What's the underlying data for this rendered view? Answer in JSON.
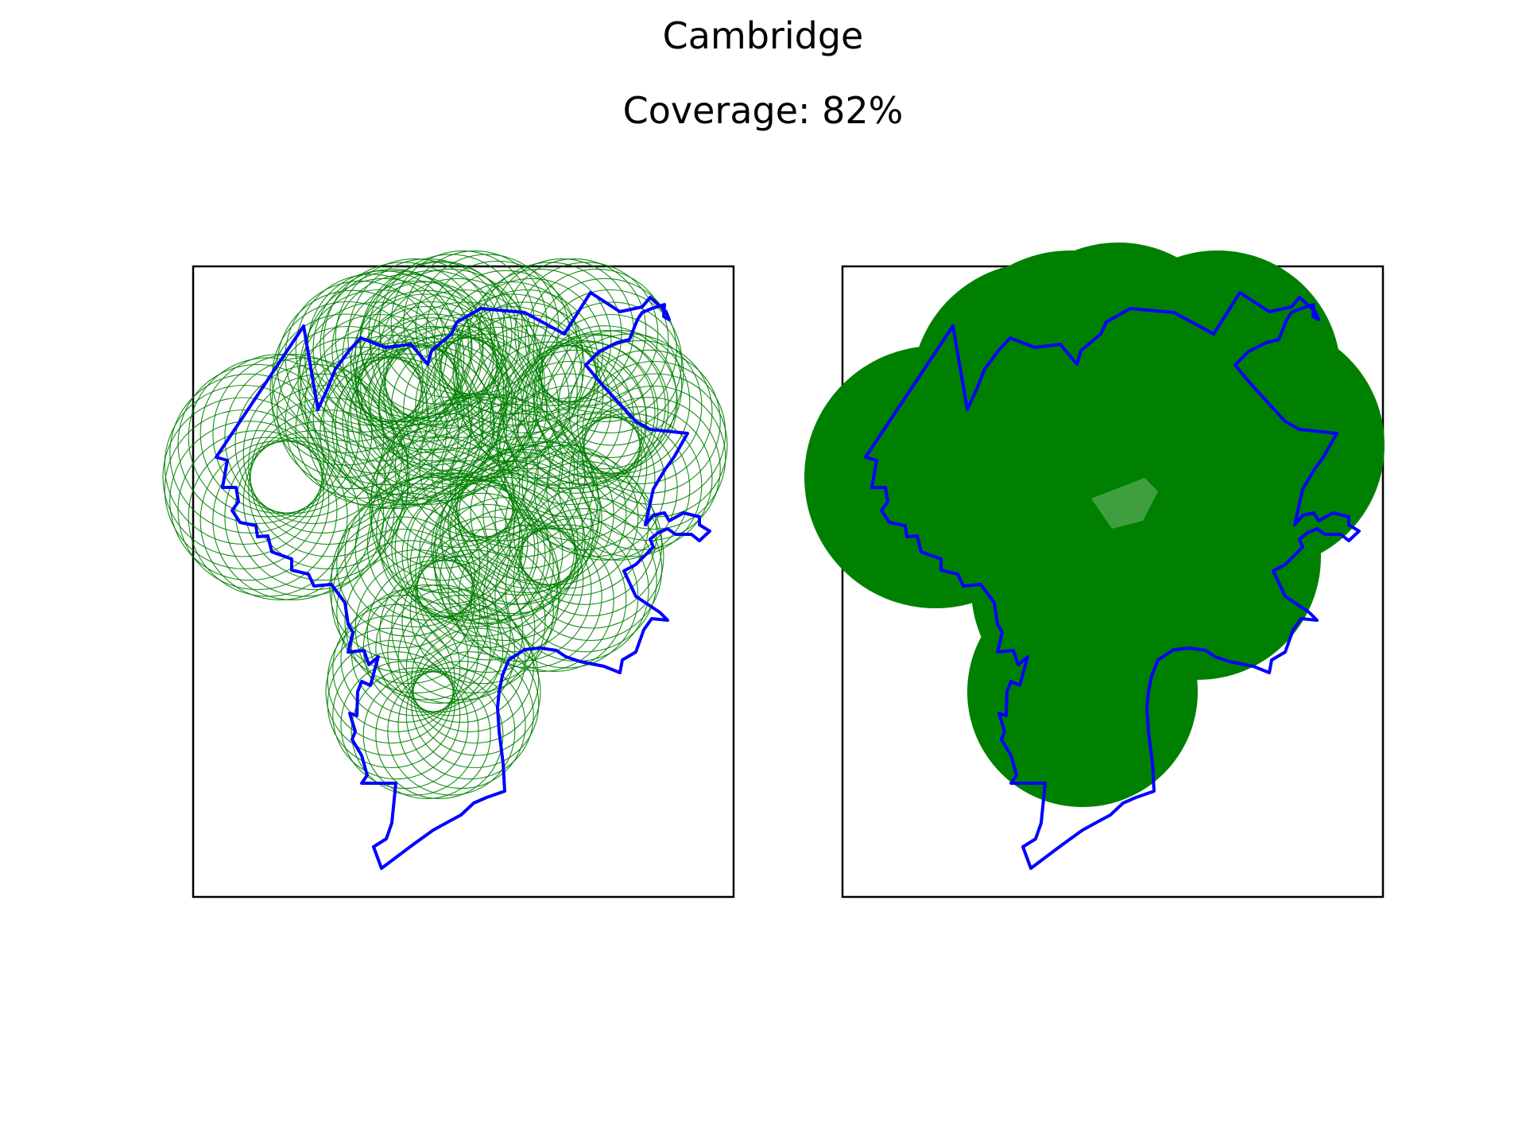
{
  "title": "Cambridge",
  "subtitle": "Coverage: 82%",
  "colors": {
    "boundary": "#0000ff",
    "coverage": "#008000",
    "frame": "#000000",
    "background": "#ffffff"
  },
  "chart_data": [
    {
      "type": "map",
      "panel": "left",
      "style": "circle outlines",
      "title": "",
      "xlabel": "",
      "ylabel": "",
      "grid": false,
      "series": [
        {
          "values": [],
          "kind": "coverage-circles-outline"
        },
        {
          "values": [],
          "kind": "city-boundary"
        }
      ]
    },
    {
      "type": "map",
      "panel": "right",
      "style": "filled union",
      "title": "",
      "xlabel": "",
      "ylabel": "",
      "grid": false,
      "coverage_percent": 82,
      "series": [
        {
          "values": [],
          "kind": "coverage-circles-filled"
        },
        {
          "values": [],
          "kind": "city-boundary"
        }
      ]
    }
  ]
}
